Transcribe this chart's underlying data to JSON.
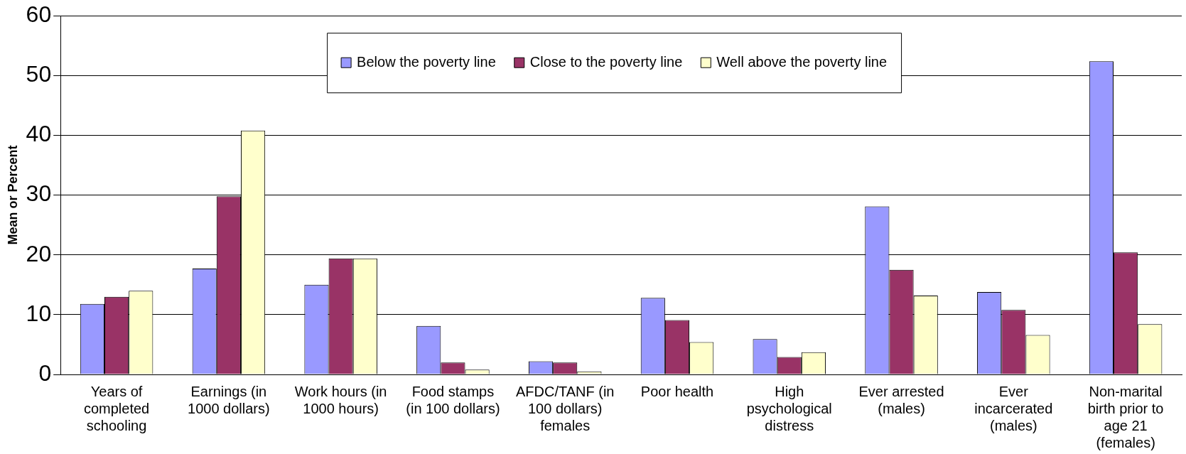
{
  "chart_data": {
    "type": "bar",
    "ylabel": "Mean or Percent",
    "categories": [
      "Years of completed schooling",
      "Earnings (in 1000 dollars)",
      "Work hours (in 1000 hours)",
      "Food stamps (in 100 dollars)",
      "AFDC/TANF (in 100 dollars) females",
      "Poor health",
      "High psychological distress",
      "Ever arrested (males)",
      "Ever incarcerated (males)",
      "Non-marital birth prior to age 21 (females)"
    ],
    "series": [
      {
        "name": "Below the poverty line",
        "color": "#9999ff",
        "values": [
          11.8,
          17.7,
          15,
          8.1,
          2.2,
          12.8,
          5.9,
          28.1,
          13.8,
          52.4
        ]
      },
      {
        "name": "Close to the poverty line",
        "color": "#993366",
        "values": [
          13,
          29.8,
          19.4,
          2,
          2,
          9.1,
          2.9,
          17.5,
          10.8,
          20.4
        ]
      },
      {
        "name": "Well above the poverty line",
        "color": "#ffffcc",
        "values": [
          14,
          40.8,
          19.4,
          0.8,
          0.5,
          5.4,
          3.7,
          13.2,
          6.6,
          8.4
        ]
      }
    ],
    "ylim": [
      0,
      60
    ],
    "yticks": [
      0,
      10,
      20,
      30,
      40,
      50,
      60
    ],
    "grid": "y",
    "legend": "top"
  }
}
